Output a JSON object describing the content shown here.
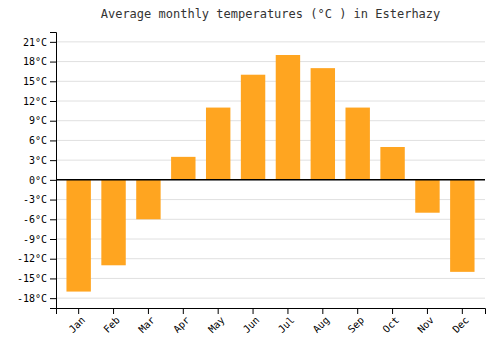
{
  "chart_data": {
    "type": "bar",
    "title": "Average monthly temperatures (°C ) in Esterhazy",
    "categories": [
      "Jan",
      "Feb",
      "Mar",
      "Apr",
      "May",
      "Jun",
      "Jul",
      "Aug",
      "Sep",
      "Oct",
      "Nov",
      "Dec"
    ],
    "values": [
      -17,
      -13,
      -6,
      3.5,
      11,
      16,
      19,
      17,
      11,
      5,
      -5,
      -14
    ],
    "color": "#FFA520",
    "ylim": [
      -19.5,
      22.5
    ],
    "yticks": [
      {
        "value": -18,
        "label": "-18°C"
      },
      {
        "value": -15,
        "label": "-15°C"
      },
      {
        "value": -12,
        "label": "-12°C"
      },
      {
        "value": -9,
        "label": "-9°C"
      },
      {
        "value": -6,
        "label": "-6°C"
      },
      {
        "value": -3,
        "label": "-3°C"
      },
      {
        "value": 0,
        "label": "0°C"
      },
      {
        "value": 3,
        "label": "3°C"
      },
      {
        "value": 6,
        "label": "6°C"
      },
      {
        "value": 9,
        "label": "9°C"
      },
      {
        "value": 12,
        "label": "12°C"
      },
      {
        "value": 15,
        "label": "15°C"
      },
      {
        "value": 18,
        "label": "18°C"
      },
      {
        "value": 21,
        "label": "21°C"
      }
    ],
    "grid": true
  }
}
